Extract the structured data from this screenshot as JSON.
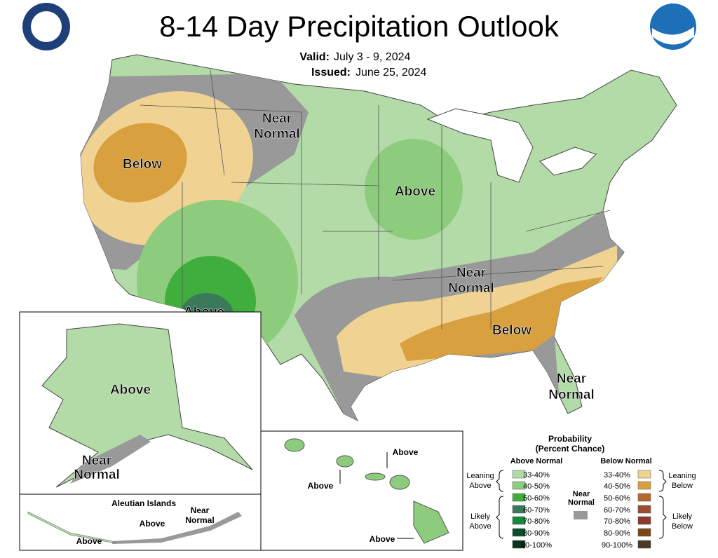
{
  "header": {
    "title": "8-14 Day Precipitation Outlook",
    "valid_label": "Valid:",
    "valid": "July 3 - 9, 2024",
    "issued_label": "Issued:",
    "issued": "June 25, 2024"
  },
  "map_labels": {
    "west_below": "Below",
    "northwest_near": [
      "Near",
      "Normal"
    ],
    "midwest_above": "Above",
    "southwest_above": "Above",
    "south_near": [
      "Near",
      "Normal"
    ],
    "southeast_below": "Below",
    "florida_near": [
      "Near",
      "Normal"
    ]
  },
  "alaska": {
    "above": "Above",
    "near": [
      "Near",
      "Normal"
    ]
  },
  "aleutian": {
    "title": "Aleutian Islands",
    "above_east": "Above",
    "above_west": "Above",
    "near": [
      "Near",
      "Normal"
    ]
  },
  "hawaii": {
    "above_north": "Above",
    "above_west": "Above",
    "above_south": "Above"
  },
  "legend": {
    "title": "Probability",
    "subtitle": "(Percent Chance)",
    "above_heading": "Above Normal",
    "below_heading": "Below Normal",
    "near": [
      "Near",
      "Normal"
    ],
    "near_color": "#999999",
    "leaning_above": [
      "Leaning",
      "Above"
    ],
    "likely_above": [
      "Likely",
      "Above"
    ],
    "leaning_below": [
      "Leaning",
      "Below"
    ],
    "likely_below": [
      "Likely",
      "Below"
    ],
    "above_bins": [
      {
        "label": "33-40%",
        "color": "#b3dba8"
      },
      {
        "label": "40-50%",
        "color": "#8dcc7c"
      },
      {
        "label": "50-60%",
        "color": "#40ae3c"
      },
      {
        "label": "60-70%",
        "color": "#3a7a5a"
      },
      {
        "label": "70-80%",
        "color": "#168a3c"
      },
      {
        "label": "80-90%",
        "color": "#0a4e2a"
      },
      {
        "label": "90-100%",
        "color": "#0a3320"
      }
    ],
    "below_bins": [
      {
        "label": "33-40%",
        "color": "#f0d392"
      },
      {
        "label": "40-50%",
        "color": "#d9a040"
      },
      {
        "label": "50-60%",
        "color": "#b5692e"
      },
      {
        "label": "60-70%",
        "color": "#9a4d32"
      },
      {
        "label": "70-80%",
        "color": "#8c3a2e"
      },
      {
        "label": "80-90%",
        "color": "#7a4a16"
      },
      {
        "label": "90-100%",
        "color": "#4a3a28"
      }
    ]
  }
}
